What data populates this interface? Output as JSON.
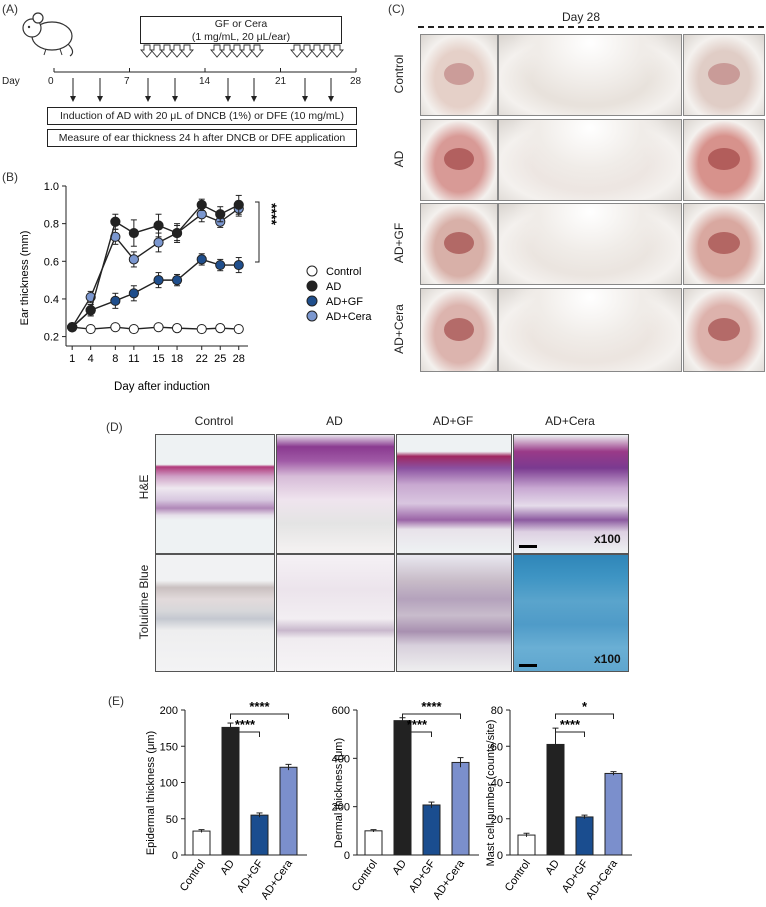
{
  "panels": {
    "a": "(A)",
    "b": "(B)",
    "c": "(C)",
    "d": "(D)",
    "e": "(E)"
  },
  "timeline": {
    "treatment_line1": "GF or Cera",
    "treatment_line2": "(1 mg/mL, 20 μL/ear)",
    "day_label": "Day",
    "days": [
      "0",
      "7",
      "14",
      "21",
      "28"
    ],
    "induction": "Induction of AD with 20 μL of DNCB (1%) or DFE (10 mg/mL)",
    "measure": "Measure of ear thickness 24 h after DNCB or DFE application"
  },
  "photos": {
    "title": "Day 28",
    "rows": [
      "Control",
      "AD",
      "AD+GF",
      "AD+Cera"
    ]
  },
  "histology": {
    "columns": [
      "Control",
      "AD",
      "AD+GF",
      "AD+Cera"
    ],
    "rows": [
      "H&E",
      "Toluidine Blue"
    ],
    "magnification": "x100"
  },
  "chart_data": [
    {
      "type": "line",
      "title": "",
      "xlabel": "Day after induction",
      "ylabel": "Ear thickness (mm)",
      "x": [
        1,
        4,
        8,
        11,
        15,
        18,
        22,
        25,
        28
      ],
      "xticks": [
        "1",
        "4",
        "8",
        "11",
        "15",
        "18",
        "22",
        "25",
        "28"
      ],
      "yticks": [
        "0.2",
        "0.4",
        "0.6",
        "0.8",
        "1.0"
      ],
      "ylim": [
        0.2,
        1.0
      ],
      "significance": "****",
      "series": [
        {
          "name": "Control",
          "color": "#ffffff",
          "values": [
            0.25,
            0.24,
            0.25,
            0.24,
            0.25,
            0.245,
            0.24,
            0.245,
            0.24
          ],
          "err": [
            0.01,
            0.01,
            0.01,
            0.01,
            0.01,
            0.01,
            0.01,
            0.01,
            0.01
          ]
        },
        {
          "name": "AD",
          "color": "#222222",
          "values": [
            0.25,
            0.34,
            0.81,
            0.75,
            0.79,
            0.75,
            0.9,
            0.85,
            0.9
          ],
          "err": [
            0.02,
            0.03,
            0.04,
            0.07,
            0.06,
            0.05,
            0.03,
            0.04,
            0.05
          ]
        },
        {
          "name": "AD+GF",
          "color": "#1f4e8c",
          "values": [
            0.25,
            0.34,
            0.39,
            0.43,
            0.5,
            0.5,
            0.61,
            0.58,
            0.58
          ],
          "err": [
            0.02,
            0.03,
            0.04,
            0.04,
            0.04,
            0.03,
            0.03,
            0.03,
            0.04
          ]
        },
        {
          "name": "AD+Cera",
          "color": "#7b97cf",
          "values": [
            0.25,
            0.41,
            0.73,
            0.61,
            0.7,
            0.75,
            0.85,
            0.81,
            0.88
          ],
          "err": [
            0.02,
            0.03,
            0.04,
            0.04,
            0.05,
            0.04,
            0.04,
            0.03,
            0.04
          ]
        }
      ]
    },
    {
      "type": "bar",
      "ylabel": "Epidermal thickness (μm)",
      "categories": [
        "Control",
        "AD",
        "AD+GF",
        "AD+Cera"
      ],
      "values": [
        33,
        176,
        55,
        121
      ],
      "err": [
        2,
        6,
        3,
        4
      ],
      "ylim": [
        0,
        200
      ],
      "yticks": [
        "0",
        "50",
        "100",
        "150",
        "200"
      ],
      "colors": [
        "#ffffff",
        "#222222",
        "#1a4d8f",
        "#7b8fcc"
      ],
      "brackets": [
        {
          "from": 1,
          "to": 2,
          "label": "****"
        },
        {
          "from": 1,
          "to": 3,
          "label": "****"
        }
      ]
    },
    {
      "type": "bar",
      "ylabel": "Dermal thickness (μm)",
      "categories": [
        "Control",
        "AD",
        "AD+GF",
        "AD+Cera"
      ],
      "values": [
        100,
        556,
        207,
        383
      ],
      "err": [
        5,
        12,
        12,
        20
      ],
      "ylim": [
        0,
        600
      ],
      "yticks": [
        "0",
        "200",
        "400",
        "600"
      ],
      "colors": [
        "#ffffff",
        "#222222",
        "#1a4d8f",
        "#7b8fcc"
      ],
      "brackets": [
        {
          "from": 1,
          "to": 2,
          "label": "****"
        },
        {
          "from": 1,
          "to": 3,
          "label": "****"
        }
      ]
    },
    {
      "type": "bar",
      "ylabel": "Mast cell number (counts/site)",
      "categories": [
        "Control",
        "AD",
        "AD+GF",
        "AD+Cera"
      ],
      "values": [
        11,
        61,
        21,
        45
      ],
      "err": [
        1,
        9,
        1,
        1
      ],
      "ylim": [
        0,
        80
      ],
      "yticks": [
        "0",
        "20",
        "40",
        "60",
        "80"
      ],
      "colors": [
        "#ffffff",
        "#222222",
        "#1a4d8f",
        "#7b8fcc"
      ],
      "brackets": [
        {
          "from": 1,
          "to": 2,
          "label": "****"
        },
        {
          "from": 1,
          "to": 3,
          "label": "*"
        }
      ]
    }
  ]
}
